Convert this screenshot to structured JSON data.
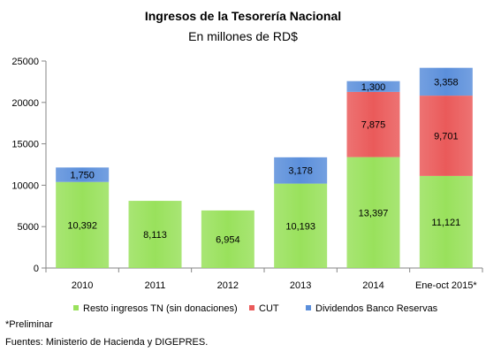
{
  "chart_data": {
    "type": "bar",
    "stacked": true,
    "title": "Ingresos de la Tesorería Nacional",
    "subtitle": "En millones de RD$",
    "categories": [
      "2010",
      "2011",
      "2012",
      "2013",
      "2014",
      "Ene-oct 2015*"
    ],
    "series": [
      {
        "name": "Resto ingresos TN (sin donaciones)",
        "values": [
          10392,
          8113,
          6954,
          10193,
          13397,
          11121
        ],
        "labels": [
          "10,392",
          "8,113",
          "6,954",
          "10,193",
          "13,397",
          "11,121"
        ],
        "color": "#99E15C"
      },
      {
        "name": "CUT",
        "values": [
          0,
          0,
          0,
          0,
          7875,
          9701
        ],
        "labels": [
          "",
          "",
          "",
          "",
          "7,875",
          "9,701"
        ],
        "color": "#EA5A5A"
      },
      {
        "name": "Dividendos Banco Reservas",
        "values": [
          1750,
          0,
          0,
          3178,
          1300,
          3358
        ],
        "labels": [
          "1,750",
          "",
          "",
          "3,178",
          "1,300",
          "3,358"
        ],
        "color": "#5B8FDB"
      }
    ],
    "ylim": [
      0,
      25000
    ],
    "yticks": [
      0,
      5000,
      10000,
      15000,
      20000,
      25000
    ],
    "ytick_labels": [
      "0",
      "5000",
      "10000",
      "15000",
      "20000",
      "25000"
    ],
    "xlabel": "",
    "ylabel": "",
    "grid": false,
    "legend_position": "bottom"
  },
  "notes": {
    "preliminary": "*Preliminar",
    "sources": "Fuentes: Ministerio de Hacienda y DIGEPRES."
  }
}
